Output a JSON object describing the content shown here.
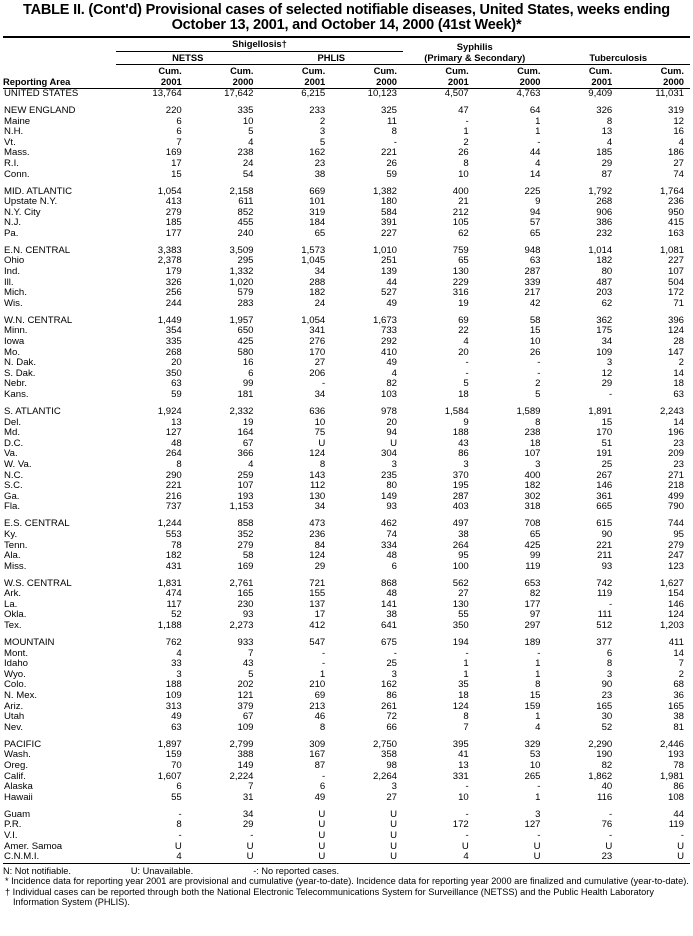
{
  "title": "TABLE II. (Cont'd) Provisional cases of selected notifiable diseases, United States, weeks ending October 13, 2001, and October 14, 2000 (41st Week)*",
  "header": {
    "shigellosis": "Shigellosis†",
    "netss": "NETSS",
    "phlis": "PHLIS",
    "syphilis": "Syphilis",
    "syphilis_sub": "(Primary & Secondary)",
    "tuberculosis": "Tuberculosis",
    "reporting_area": "Reporting Area",
    "columns": [
      [
        "Cum.",
        "2001"
      ],
      [
        "Cum.",
        "2000"
      ],
      [
        "Cum.",
        "2001"
      ],
      [
        "Cum.",
        "2000"
      ],
      [
        "Cum.",
        "2001"
      ],
      [
        "Cum.",
        "2000"
      ],
      [
        "Cum.",
        "2001"
      ],
      [
        "Cum.",
        "2000"
      ]
    ]
  },
  "table": {
    "groups": [
      {
        "rows": [
          [
            "UNITED STATES",
            "13,764",
            "17,642",
            "6,215",
            "10,123",
            "4,507",
            "4,763",
            "9,409",
            "11,031"
          ]
        ]
      },
      {
        "rows": [
          [
            "NEW ENGLAND",
            "220",
            "335",
            "233",
            "325",
            "47",
            "64",
            "326",
            "319"
          ],
          [
            "Maine",
            "6",
            "10",
            "2",
            "11",
            "-",
            "1",
            "8",
            "12"
          ],
          [
            "N.H.",
            "6",
            "5",
            "3",
            "8",
            "1",
            "1",
            "13",
            "16"
          ],
          [
            "Vt.",
            "7",
            "4",
            "5",
            "-",
            "2",
            "-",
            "4",
            "4"
          ],
          [
            "Mass.",
            "169",
            "238",
            "162",
            "221",
            "26",
            "44",
            "185",
            "186"
          ],
          [
            "R.I.",
            "17",
            "24",
            "23",
            "26",
            "8",
            "4",
            "29",
            "27"
          ],
          [
            "Conn.",
            "15",
            "54",
            "38",
            "59",
            "10",
            "14",
            "87",
            "74"
          ]
        ]
      },
      {
        "rows": [
          [
            "MID. ATLANTIC",
            "1,054",
            "2,158",
            "669",
            "1,382",
            "400",
            "225",
            "1,792",
            "1,764"
          ],
          [
            "Upstate N.Y.",
            "413",
            "611",
            "101",
            "180",
            "21",
            "9",
            "268",
            "236"
          ],
          [
            "N.Y. City",
            "279",
            "852",
            "319",
            "584",
            "212",
            "94",
            "906",
            "950"
          ],
          [
            "N.J.",
            "185",
            "455",
            "184",
            "391",
            "105",
            "57",
            "386",
            "415"
          ],
          [
            "Pa.",
            "177",
            "240",
            "65",
            "227",
            "62",
            "65",
            "232",
            "163"
          ]
        ]
      },
      {
        "rows": [
          [
            "E.N. CENTRAL",
            "3,383",
            "3,509",
            "1,573",
            "1,010",
            "759",
            "948",
            "1,014",
            "1,081"
          ],
          [
            "Ohio",
            "2,378",
            "295",
            "1,045",
            "251",
            "65",
            "63",
            "182",
            "227"
          ],
          [
            "Ind.",
            "179",
            "1,332",
            "34",
            "139",
            "130",
            "287",
            "80",
            "107"
          ],
          [
            "Ill.",
            "326",
            "1,020",
            "288",
            "44",
            "229",
            "339",
            "487",
            "504"
          ],
          [
            "Mich.",
            "256",
            "579",
            "182",
            "527",
            "316",
            "217",
            "203",
            "172"
          ],
          [
            "Wis.",
            "244",
            "283",
            "24",
            "49",
            "19",
            "42",
            "62",
            "71"
          ]
        ]
      },
      {
        "rows": [
          [
            "W.N. CENTRAL",
            "1,449",
            "1,957",
            "1,054",
            "1,673",
            "69",
            "58",
            "362",
            "396"
          ],
          [
            "Minn.",
            "354",
            "650",
            "341",
            "733",
            "22",
            "15",
            "175",
            "124"
          ],
          [
            "Iowa",
            "335",
            "425",
            "276",
            "292",
            "4",
            "10",
            "34",
            "28"
          ],
          [
            "Mo.",
            "268",
            "580",
            "170",
            "410",
            "20",
            "26",
            "109",
            "147"
          ],
          [
            "N. Dak.",
            "20",
            "16",
            "27",
            "49",
            "-",
            "-",
            "3",
            "2"
          ],
          [
            "S. Dak.",
            "350",
            "6",
            "206",
            "4",
            "-",
            "-",
            "12",
            "14"
          ],
          [
            "Nebr.",
            "63",
            "99",
            "-",
            "82",
            "5",
            "2",
            "29",
            "18"
          ],
          [
            "Kans.",
            "59",
            "181",
            "34",
            "103",
            "18",
            "5",
            "-",
            "63"
          ]
        ]
      },
      {
        "rows": [
          [
            "S. ATLANTIC",
            "1,924",
            "2,332",
            "636",
            "978",
            "1,584",
            "1,589",
            "1,891",
            "2,243"
          ],
          [
            "Del.",
            "13",
            "19",
            "10",
            "20",
            "9",
            "8",
            "15",
            "14"
          ],
          [
            "Md.",
            "127",
            "164",
            "75",
            "94",
            "188",
            "238",
            "170",
            "196"
          ],
          [
            "D.C.",
            "48",
            "67",
            "U",
            "U",
            "43",
            "18",
            "51",
            "23"
          ],
          [
            "Va.",
            "264",
            "366",
            "124",
            "304",
            "86",
            "107",
            "191",
            "209"
          ],
          [
            "W. Va.",
            "8",
            "4",
            "8",
            "3",
            "3",
            "3",
            "25",
            "23"
          ],
          [
            "N.C.",
            "290",
            "259",
            "143",
            "235",
            "370",
            "400",
            "267",
            "271"
          ],
          [
            "S.C.",
            "221",
            "107",
            "112",
            "80",
            "195",
            "182",
            "146",
            "218"
          ],
          [
            "Ga.",
            "216",
            "193",
            "130",
            "149",
            "287",
            "302",
            "361",
            "499"
          ],
          [
            "Fla.",
            "737",
            "1,153",
            "34",
            "93",
            "403",
            "318",
            "665",
            "790"
          ]
        ]
      },
      {
        "rows": [
          [
            "E.S. CENTRAL",
            "1,244",
            "858",
            "473",
            "462",
            "497",
            "708",
            "615",
            "744"
          ],
          [
            "Ky.",
            "553",
            "352",
            "236",
            "74",
            "38",
            "65",
            "90",
            "95"
          ],
          [
            "Tenn.",
            "78",
            "279",
            "84",
            "334",
            "264",
            "425",
            "221",
            "279"
          ],
          [
            "Ala.",
            "182",
            "58",
            "124",
            "48",
            "95",
            "99",
            "211",
            "247"
          ],
          [
            "Miss.",
            "431",
            "169",
            "29",
            "6",
            "100",
            "119",
            "93",
            "123"
          ]
        ]
      },
      {
        "rows": [
          [
            "W.S. CENTRAL",
            "1,831",
            "2,761",
            "721",
            "868",
            "562",
            "653",
            "742",
            "1,627"
          ],
          [
            "Ark.",
            "474",
            "165",
            "155",
            "48",
            "27",
            "82",
            "119",
            "154"
          ],
          [
            "La.",
            "117",
            "230",
            "137",
            "141",
            "130",
            "177",
            "-",
            "146"
          ],
          [
            "Okla.",
            "52",
            "93",
            "17",
            "38",
            "55",
            "97",
            "111",
            "124"
          ],
          [
            "Tex.",
            "1,188",
            "2,273",
            "412",
            "641",
            "350",
            "297",
            "512",
            "1,203"
          ]
        ]
      },
      {
        "rows": [
          [
            "MOUNTAIN",
            "762",
            "933",
            "547",
            "675",
            "194",
            "189",
            "377",
            "411"
          ],
          [
            "Mont.",
            "4",
            "7",
            "-",
            "-",
            "-",
            "-",
            "6",
            "14"
          ],
          [
            "Idaho",
            "33",
            "43",
            "-",
            "25",
            "1",
            "1",
            "8",
            "7"
          ],
          [
            "Wyo.",
            "3",
            "5",
            "1",
            "3",
            "1",
            "1",
            "3",
            "2"
          ],
          [
            "Colo.",
            "188",
            "202",
            "210",
            "162",
            "35",
            "8",
            "90",
            "68"
          ],
          [
            "N. Mex.",
            "109",
            "121",
            "69",
            "86",
            "18",
            "15",
            "23",
            "36"
          ],
          [
            "Ariz.",
            "313",
            "379",
            "213",
            "261",
            "124",
            "159",
            "165",
            "165"
          ],
          [
            "Utah",
            "49",
            "67",
            "46",
            "72",
            "8",
            "1",
            "30",
            "38"
          ],
          [
            "Nev.",
            "63",
            "109",
            "8",
            "66",
            "7",
            "4",
            "52",
            "81"
          ]
        ]
      },
      {
        "rows": [
          [
            "PACIFIC",
            "1,897",
            "2,799",
            "309",
            "2,750",
            "395",
            "329",
            "2,290",
            "2,446"
          ],
          [
            "Wash.",
            "159",
            "388",
            "167",
            "358",
            "41",
            "53",
            "190",
            "193"
          ],
          [
            "Oreg.",
            "70",
            "149",
            "87",
            "98",
            "13",
            "10",
            "82",
            "78"
          ],
          [
            "Calif.",
            "1,607",
            "2,224",
            "-",
            "2,264",
            "331",
            "265",
            "1,862",
            "1,981"
          ],
          [
            "Alaska",
            "6",
            "7",
            "6",
            "3",
            "-",
            "-",
            "40",
            "86"
          ],
          [
            "Hawaii",
            "55",
            "31",
            "49",
            "27",
            "10",
            "1",
            "116",
            "108"
          ]
        ]
      },
      {
        "rows": [
          [
            "Guam",
            "-",
            "34",
            "U",
            "U",
            "-",
            "3",
            "-",
            "44"
          ],
          [
            "P.R.",
            "8",
            "29",
            "U",
            "U",
            "172",
            "127",
            "76",
            "119"
          ],
          [
            "V.I.",
            "-",
            "-",
            "U",
            "U",
            "-",
            "-",
            "-",
            "-"
          ],
          [
            "Amer. Samoa",
            "U",
            "U",
            "U",
            "U",
            "U",
            "U",
            "U",
            "U"
          ],
          [
            "C.N.M.I.",
            "4",
            "U",
            "U",
            "U",
            "4",
            "U",
            "23",
            "U"
          ]
        ]
      }
    ]
  },
  "footnotes": {
    "legend": [
      "N: Not notifiable.",
      "U: Unavailable.",
      "-: No reported cases."
    ],
    "notes": [
      "* Incidence data for reporting year 2001 are provisional and cumulative (year-to-date). Incidence data for reporting year 2000 are finalized and cumulative (year-to-date).",
      "† Individual cases can be reported through both the National Electronic Telecommunications System for Surveillance (NETSS) and the Public Health Laboratory Information System (PHLIS)."
    ]
  }
}
